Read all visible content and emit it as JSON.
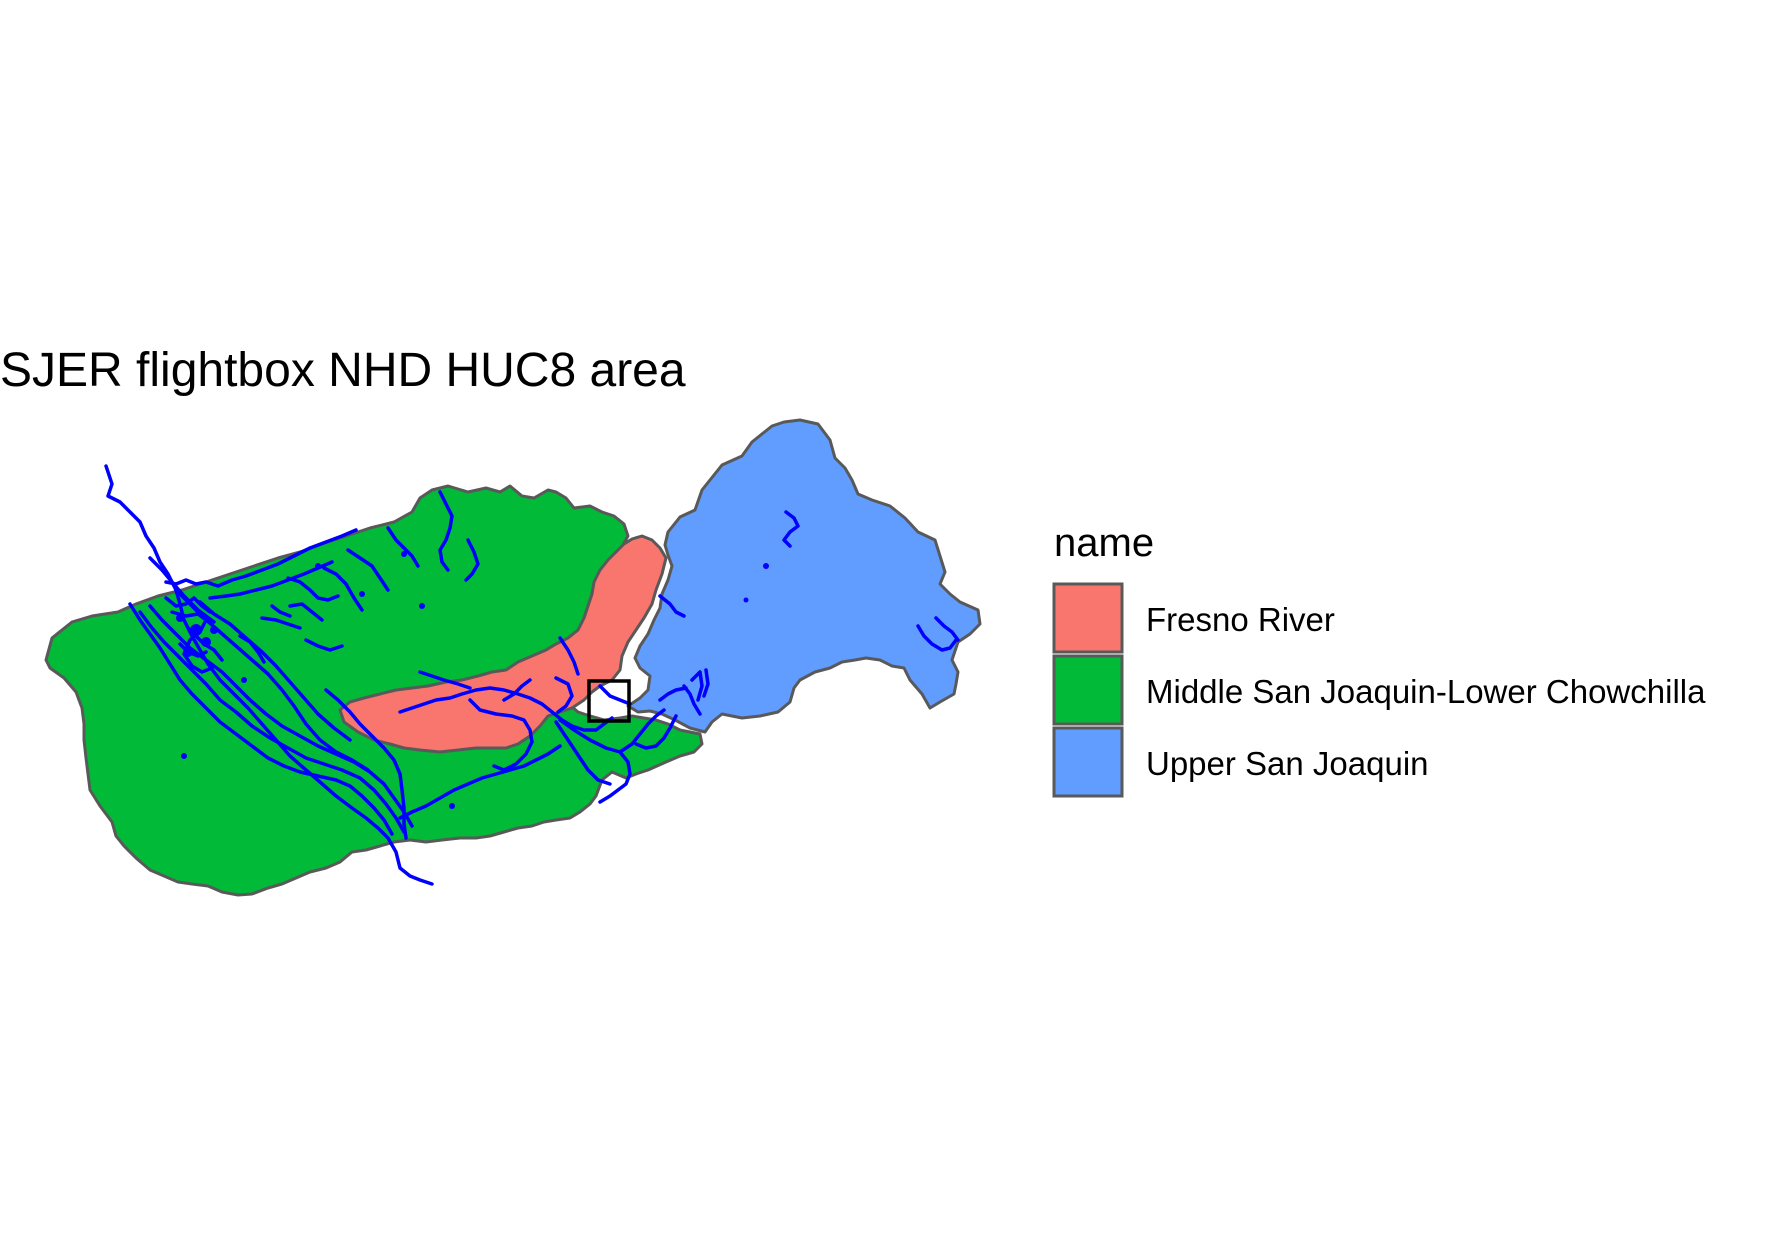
{
  "title": "SJER flightbox NHD HUC8 area",
  "legend": {
    "title": "name",
    "items": [
      {
        "label": "Fresno River",
        "color": "#F8766D"
      },
      {
        "label": "Middle San Joaquin-Lower Chowchilla",
        "color": "#00BA38"
      },
      {
        "label": "Upper San Joaquin",
        "color": "#619CFF"
      }
    ]
  },
  "style": {
    "boundary_color": "#595959",
    "river_color": "#0000FF",
    "flightbox_color": "#000000",
    "background": "#FFFFFF"
  }
}
